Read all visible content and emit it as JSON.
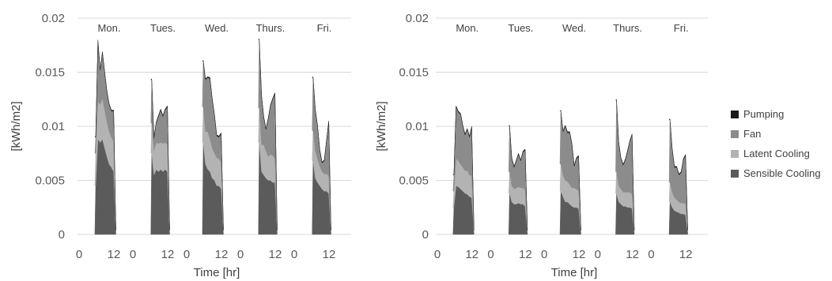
{
  "chart_data": {
    "type": "area",
    "layout": "two stacked-area panels sharing one legend",
    "series_names": [
      "Pumping",
      "Fan",
      "Latent Cooling",
      "Sensible Cooling"
    ],
    "colors": {
      "Pumping": "#1a1a1a",
      "Fan": "#8c8c8c",
      "Latent Cooling": "#b3b3b3",
      "Sensible Cooling": "#5b5b5b",
      "grid": "#d9d9d9",
      "text": "#595959"
    },
    "legend": {
      "position": "right",
      "order": [
        "Pumping",
        "Fan",
        "Latent Cooling",
        "Sensible Cooling"
      ]
    },
    "grid": true,
    "panels": [
      {
        "ylabel": "[kWh/m2]",
        "xlabel": "Time [hr]",
        "ylim": [
          0,
          0.02
        ],
        "yticks": [
          "0",
          "0.005",
          "0.01",
          "0.015",
          "0.02"
        ],
        "xticks": [
          "0",
          "12"
        ],
        "days": [
          {
            "label": "Mon.",
            "start_hour": 6,
            "end_hour": 15,
            "sensible": [
              0.0045,
              0.0088,
              0.0085,
              0.0088,
              0.008,
              0.0072,
              0.0065,
              0.0062,
              0.0058,
              0.0002
            ],
            "latent": [
              0.003,
              0.0035,
              0.0035,
              0.0038,
              0.0035,
              0.0032,
              0.003,
              0.0028,
              0.0028,
              0.0001
            ],
            "fan": [
              0.0015,
              0.0055,
              0.0032,
              0.0042,
              0.0035,
              0.0028,
              0.0025,
              0.0024,
              0.0028,
              0.0001
            ],
            "pumping": [
              0.0001,
              0.0002,
              0.0001,
              0.0001,
              0.0001,
              0.0001,
              0.0001,
              0.0001,
              0.0001,
              0
            ]
          },
          {
            "label": "Tues.",
            "start_hour": 7,
            "end_hour": 15,
            "sensible": [
              0.0075,
              0.0055,
              0.006,
              0.0058,
              0.006,
              0.0058,
              0.006,
              0.0058,
              0.0002
            ],
            "latent": [
              0.0028,
              0.0022,
              0.0025,
              0.0026,
              0.0025,
              0.0026,
              0.0025,
              0.0025,
              0.0001
            ],
            "fan": [
              0.004,
              0.0012,
              0.0018,
              0.0025,
              0.003,
              0.0025,
              0.003,
              0.0035,
              0.0001
            ],
            "pumping": [
              0.0001,
              0.0001,
              0.0001,
              0.0001,
              0.0001,
              0.0001,
              0.0001,
              0.0001,
              0
            ]
          },
          {
            "label": "Wed.",
            "start_hour": 6,
            "end_hour": 15,
            "sensible": [
              0.0085,
              0.0065,
              0.006,
              0.0058,
              0.0052,
              0.005,
              0.0045,
              0.0045,
              0.0042,
              0.0002
            ],
            "latent": [
              0.0033,
              0.003,
              0.0035,
              0.003,
              0.0028,
              0.0025,
              0.0026,
              0.0025,
              0.0025,
              0.0001
            ],
            "fan": [
              0.0042,
              0.0048,
              0.005,
              0.0056,
              0.0045,
              0.0035,
              0.002,
              0.002,
              0.0026,
              0.0001
            ],
            "pumping": [
              0.0001,
              0.0001,
              0.0001,
              0.0001,
              0.0001,
              0.0001,
              0.0001,
              0.0001,
              0.0001,
              0
            ]
          },
          {
            "label": "Thurs.",
            "start_hour": 7,
            "end_hour": 15,
            "sensible": [
              0.0085,
              0.0058,
              0.0055,
              0.0052,
              0.005,
              0.005,
              0.0048,
              0.0048,
              0.0002
            ],
            "latent": [
              0.0032,
              0.0025,
              0.0028,
              0.0025,
              0.0022,
              0.0024,
              0.0025,
              0.0022,
              0.0001
            ],
            "fan": [
              0.0063,
              0.0045,
              0.0025,
              0.002,
              0.0035,
              0.0045,
              0.0052,
              0.006,
              0.0001
            ],
            "pumping": [
              0.0001,
              0.0001,
              0.0001,
              0.0001,
              0.0001,
              0.0001,
              0.0001,
              0.0001,
              0
            ]
          },
          {
            "label": "Fri.",
            "start_hour": 7,
            "end_hour": 15,
            "sensible": [
              0.0068,
              0.0052,
              0.0048,
              0.0045,
              0.0042,
              0.004,
              0.004,
              0.0038,
              0.0002
            ],
            "latent": [
              0.0028,
              0.0025,
              0.0022,
              0.0018,
              0.0016,
              0.0016,
              0.0016,
              0.0016,
              0.0001
            ],
            "fan": [
              0.0049,
              0.0038,
              0.003,
              0.0015,
              0.0008,
              0.0012,
              0.003,
              0.005,
              0.0001
            ],
            "pumping": [
              0.0001,
              0.0001,
              0.0001,
              0.0001,
              0.0001,
              0.0001,
              0.0001,
              0.0001,
              0
            ]
          }
        ]
      },
      {
        "ylabel": "[kWh/m2]",
        "xlabel": "Time [hr]",
        "ylim": [
          0,
          0.02
        ],
        "yticks": [
          "0",
          "0.005",
          "0.01",
          "0.015",
          "0.02"
        ],
        "xticks": [
          "0",
          "12"
        ],
        "days": [
          {
            "label": "Mon.",
            "start_hour": 6,
            "end_hour": 15,
            "sensible": [
              0.0025,
              0.0045,
              0.0044,
              0.0042,
              0.004,
              0.0038,
              0.0037,
              0.0035,
              0.0034,
              0.0002
            ],
            "latent": [
              0.0015,
              0.0025,
              0.0024,
              0.0023,
              0.0022,
              0.0021,
              0.0022,
              0.002,
              0.002,
              0.0001
            ],
            "fan": [
              0.0015,
              0.0048,
              0.0045,
              0.0046,
              0.0038,
              0.0033,
              0.0038,
              0.0035,
              0.0045,
              0.0001
            ],
            "pumping": [
              0.0001,
              0.0001,
              0.0001,
              0.0001,
              0.0001,
              0.0001,
              0.0001,
              0.0001,
              0.0001,
              0
            ]
          },
          {
            "label": "Tues.",
            "start_hour": 7,
            "end_hour": 15,
            "sensible": [
              0.0038,
              0.003,
              0.0028,
              0.0028,
              0.0029,
              0.0028,
              0.0028,
              0.0026,
              0.0002
            ],
            "latent": [
              0.002,
              0.0015,
              0.0014,
              0.0015,
              0.0015,
              0.0015,
              0.0015,
              0.0015,
              0.0001
            ],
            "fan": [
              0.0042,
              0.0025,
              0.002,
              0.0025,
              0.003,
              0.0025,
              0.0033,
              0.0037,
              0.0001
            ],
            "pumping": [
              0.0001,
              0.0001,
              0.0001,
              0.0001,
              0.0001,
              0.0001,
              0.0001,
              0.0001,
              0
            ]
          },
          {
            "label": "Wed.",
            "start_hour": 6,
            "end_hour": 15,
            "sensible": [
              0.004,
              0.0035,
              0.003,
              0.003,
              0.0028,
              0.0026,
              0.0025,
              0.0025,
              0.0024,
              0.0002
            ],
            "latent": [
              0.0025,
              0.002,
              0.002,
              0.0019,
              0.0018,
              0.0017,
              0.0018,
              0.0017,
              0.0016,
              0.0001
            ],
            "fan": [
              0.0049,
              0.004,
              0.005,
              0.0045,
              0.0048,
              0.004,
              0.002,
              0.0028,
              0.0032,
              0.0001
            ],
            "pumping": [
              0.0001,
              0.0001,
              0.0001,
              0.0001,
              0.0001,
              0.0001,
              0.0001,
              0.0001,
              0.0001,
              0
            ]
          },
          {
            "label": "Thurs.",
            "start_hour": 7,
            "end_hour": 15,
            "sensible": [
              0.0038,
              0.003,
              0.0028,
              0.0026,
              0.0026,
              0.0025,
              0.0025,
              0.0024,
              0.0002
            ],
            "latent": [
              0.002,
              0.0015,
              0.0014,
              0.0013,
              0.0013,
              0.0014,
              0.0014,
              0.0013,
              0.0001
            ],
            "fan": [
              0.0066,
              0.004,
              0.0028,
              0.0025,
              0.003,
              0.0038,
              0.0047,
              0.0055,
              0.0001
            ],
            "pumping": [
              0.0001,
              0.0001,
              0.0001,
              0.0001,
              0.0001,
              0.0001,
              0.0001,
              0.0001,
              0
            ]
          },
          {
            "label": "Fri.",
            "start_hour": 7,
            "end_hour": 15,
            "sensible": [
              0.003,
              0.0025,
              0.0022,
              0.0021,
              0.002,
              0.0019,
              0.0019,
              0.0018,
              0.0002
            ],
            "latent": [
              0.0018,
              0.0014,
              0.0012,
              0.0011,
              0.001,
              0.001,
              0.001,
              0.001,
              0.0001
            ],
            "fan": [
              0.0058,
              0.004,
              0.0028,
              0.003,
              0.0025,
              0.0028,
              0.004,
              0.0045,
              0.0001
            ],
            "pumping": [
              0.0001,
              0.0001,
              0.0001,
              0.0001,
              0.0001,
              0.0001,
              0.0001,
              0.0001,
              0
            ]
          }
        ]
      }
    ]
  }
}
